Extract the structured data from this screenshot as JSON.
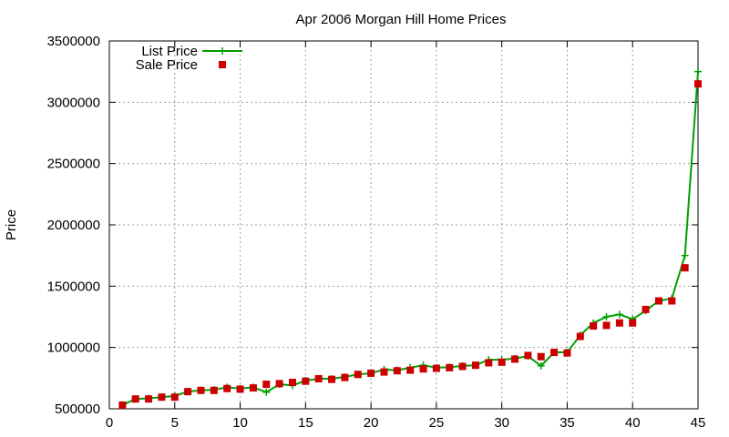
{
  "chart_data": {
    "type": "line",
    "title": "Apr 2006 Morgan Hill Home Prices",
    "xlabel": "",
    "ylabel": "Price",
    "xlim": [
      0,
      45
    ],
    "ylim": [
      500000,
      3500000
    ],
    "xticks": [
      0,
      5,
      10,
      15,
      20,
      25,
      30,
      35,
      40,
      45
    ],
    "yticks": [
      500000,
      1000000,
      1500000,
      2000000,
      2500000,
      3000000,
      3500000
    ],
    "grid": true,
    "legend_position": "top-left",
    "x": [
      1,
      2,
      3,
      4,
      5,
      6,
      7,
      8,
      9,
      10,
      11,
      12,
      13,
      14,
      15,
      16,
      17,
      18,
      19,
      20,
      21,
      22,
      23,
      24,
      25,
      26,
      27,
      28,
      29,
      30,
      31,
      32,
      33,
      34,
      35,
      36,
      37,
      38,
      39,
      40,
      41,
      42,
      43,
      44,
      45
    ],
    "series": [
      {
        "name": "List Price",
        "style": "line-plus",
        "color": "#00a000",
        "values": [
          530000,
          580000,
          585000,
          595000,
          605000,
          640000,
          650000,
          655000,
          675000,
          665000,
          675000,
          635000,
          700000,
          690000,
          730000,
          745000,
          745000,
          760000,
          780000,
          790000,
          820000,
          815000,
          835000,
          855000,
          835000,
          840000,
          850000,
          855000,
          900000,
          900000,
          910000,
          930000,
          850000,
          960000,
          960000,
          1100000,
          1200000,
          1250000,
          1270000,
          1230000,
          1300000,
          1380000,
          1400000,
          1750000,
          3250000
        ]
      },
      {
        "name": "Sale Price",
        "style": "square-marker",
        "color": "#cc0000",
        "values": [
          530000,
          580000,
          580000,
          595000,
          595000,
          640000,
          650000,
          650000,
          665000,
          660000,
          670000,
          700000,
          705000,
          715000,
          725000,
          745000,
          740000,
          755000,
          780000,
          790000,
          800000,
          810000,
          815000,
          825000,
          830000,
          835000,
          845000,
          855000,
          875000,
          880000,
          905000,
          935000,
          925000,
          960000,
          955000,
          1090000,
          1175000,
          1180000,
          1200000,
          1200000,
          1310000,
          1380000,
          1380000,
          1650000,
          3150000
        ]
      }
    ]
  }
}
